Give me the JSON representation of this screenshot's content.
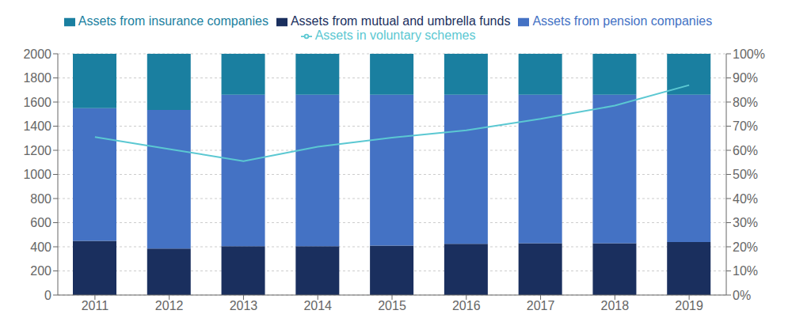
{
  "chart_data": {
    "type": "bar",
    "stacked": true,
    "categories": [
      "2011",
      "2012",
      "2013",
      "2014",
      "2015",
      "2016",
      "2017",
      "2018",
      "2019"
    ],
    "series": [
      {
        "name": "Assets from mutual and umbrella funds",
        "color": "#1a2f5e",
        "values": [
          450,
          385,
          405,
          405,
          410,
          425,
          430,
          430,
          440
        ]
      },
      {
        "name": "Assets from pension companies",
        "color": "#4472c4",
        "values": [
          1100,
          1150,
          1255,
          1255,
          1250,
          1235,
          1230,
          1230,
          1220
        ]
      },
      {
        "name": "Assets from insurance companies",
        "color": "#1a7fa0",
        "values": [
          450,
          465,
          340,
          340,
          340,
          340,
          340,
          340,
          340
        ]
      },
      {
        "name": "Assets in voluntary schemes",
        "type": "line",
        "color": "#5bc8d2",
        "values": [
          1310,
          1210,
          1110,
          1230,
          1305,
          1365,
          1460,
          1570,
          1740
        ]
      }
    ],
    "ylim": [
      0,
      2000
    ],
    "yticks": [
      0,
      200,
      400,
      600,
      800,
      1000,
      1200,
      1400,
      1600,
      1800,
      2000
    ],
    "y2lim": [
      0,
      100
    ],
    "y2ticks": [
      {
        "value": 0,
        "label": "0%"
      },
      {
        "value": 10,
        "label": "10%"
      },
      {
        "value": 20,
        "label": "20%"
      },
      {
        "value": 30,
        "label": "30%"
      },
      {
        "value": 40,
        "label": "40%"
      },
      {
        "value": 50,
        "label": "50%"
      },
      {
        "value": 60,
        "label": "60%"
      },
      {
        "value": 70,
        "label": "70%"
      },
      {
        "value": 80,
        "label": "80%"
      },
      {
        "value": 90,
        "label": "90%"
      },
      {
        "value": 100,
        "label": "100%"
      }
    ],
    "grid": true,
    "legend": "top"
  }
}
